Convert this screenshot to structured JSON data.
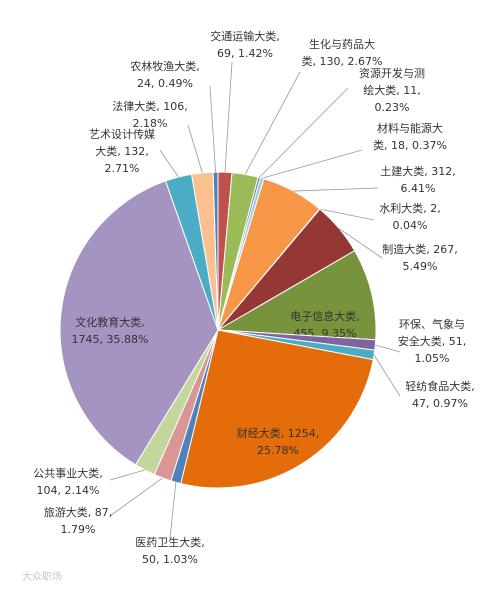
{
  "chart_data": {
    "type": "pie",
    "categories": [
      "交通运输大类",
      "生化与药品大类",
      "资源开发与测绘大类",
      "材料与能源大类",
      "土建大类",
      "水利大类",
      "制造大类",
      "电子信息大类",
      "环保、气象与安全大类",
      "轻纺食品大类",
      "财经大类",
      "医药卫生大类",
      "旅游大类",
      "公共事业大类",
      "文化教育大类",
      "艺术设计传媒大类",
      "法律大类",
      "农林牧渔大类"
    ],
    "values": [
      69,
      130,
      11,
      18,
      312,
      2,
      267,
      455,
      51,
      47,
      1254,
      50,
      87,
      104,
      1745,
      132,
      106,
      24
    ],
    "value_labels": [
      [
        "交通运输大类,",
        "69, 1.42%"
      ],
      [
        "生化与药品大",
        "类, 130, 2.67%"
      ],
      [
        "资源开发与测",
        "绘大类, 11,",
        "0.23%"
      ],
      [
        "材料与能源大",
        "类, 18, 0.37%"
      ],
      [
        "土建大类, 312,",
        "6.41%"
      ],
      [
        "水利大类, 2,",
        "0.04%"
      ],
      [
        "制造大类, 267,",
        "5.49%"
      ],
      [
        "电子信息大类,",
        "455, 9.35%"
      ],
      [
        "环保、气象与",
        "安全大类, 51,",
        "1.05%"
      ],
      [
        "轻纺食品大类,",
        "47, 0.97%"
      ],
      [
        "财经大类, 1254,",
        "25.78%"
      ],
      [
        "医药卫生大类,",
        "50, 1.03%"
      ],
      [
        "旅游大类, 87,",
        "1.79%"
      ],
      [
        "公共事业大类,",
        "104, 2.14%"
      ],
      [
        "文化教育大类,",
        "1745, 35.88%"
      ],
      [
        "艺术设计传媒",
        "大类, 132,",
        "2.71%"
      ],
      [
        "法律大类, 106,",
        "2.18%"
      ],
      [
        "农林牧渔大类,",
        "24, 0.49%"
      ]
    ],
    "colors": [
      "#c0504d",
      "#9bbb59",
      "#8064a2",
      "#93cddd",
      "#f79646",
      "#4f81bd",
      "#953735",
      "#77933c",
      "#8064a2",
      "#4bacc6",
      "#e46c0a",
      "#4f81bd",
      "#d99694",
      "#c3d69b",
      "#a593c2",
      "#4bacc6",
      "#fac090",
      "#4f81bd"
    ],
    "watermark": "大众职场"
  }
}
